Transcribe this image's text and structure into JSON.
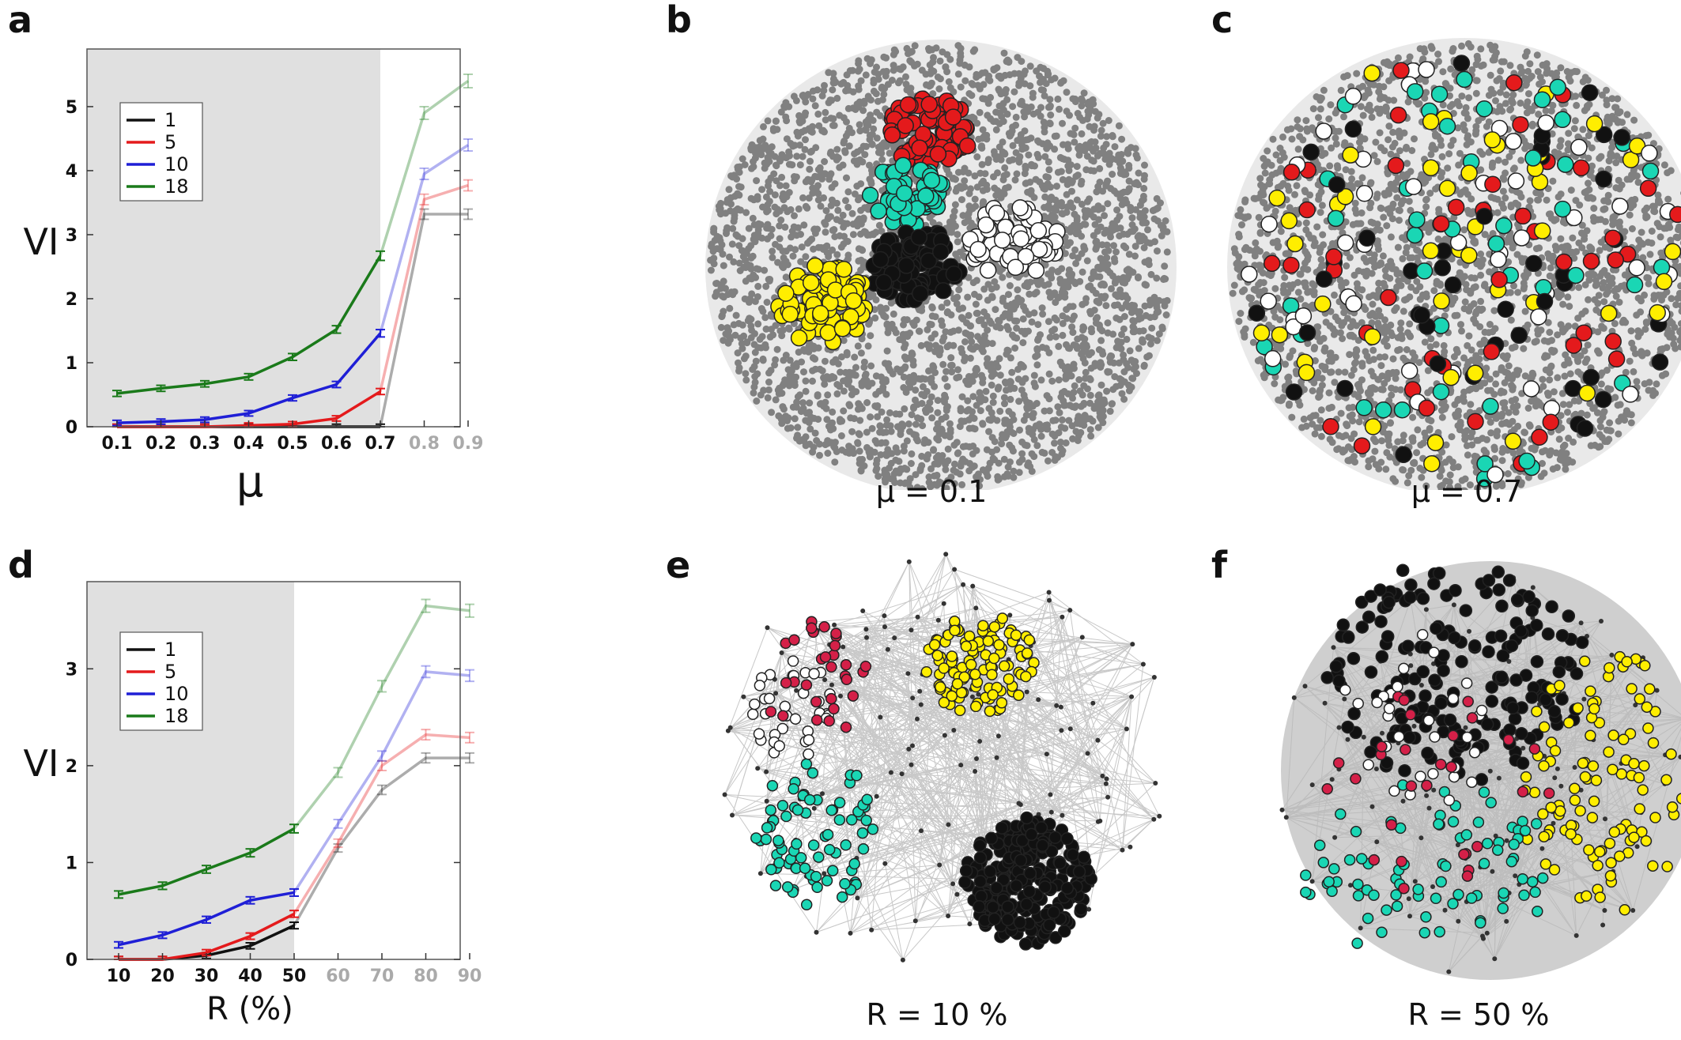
{
  "panels": {
    "a": "a",
    "b": "b",
    "c": "c",
    "d": "d",
    "e": "e",
    "f": "f"
  },
  "captions": {
    "b": "μ = 0.1",
    "c": "μ = 0.7",
    "e": "R = 10 %",
    "f": "R = 50 %"
  },
  "colors": {
    "black": "#111111",
    "red": "#e41a1c",
    "blue": "#1f1fd6",
    "green": "#1a7a1a",
    "shade": "#e0e0e0",
    "node_gray": "#808080",
    "yellow": "#ffee00",
    "cyan": "#1ad6b4",
    "white": "#ffffff",
    "crimson": "#d42048",
    "edge": "#c8c8c8"
  },
  "chart_data": [
    {
      "id": "a",
      "type": "line",
      "x": [
        0.1,
        0.2,
        0.3,
        0.4,
        0.5,
        0.6,
        0.7,
        0.8,
        0.9
      ],
      "x_tick_labels": [
        "0.1",
        "0.2",
        "0.3",
        "0.4",
        "0.5",
        "0.6",
        "0.7",
        "0.8",
        "0.9"
      ],
      "shaded_until": 0.7,
      "xlabel": "μ",
      "ylabel": "VI",
      "ylim": [
        0,
        5.9
      ],
      "yticks": [
        0,
        1,
        2,
        3,
        4,
        5
      ],
      "legend": "upper-left",
      "series": [
        {
          "name": "1",
          "color": "#111111",
          "values": [
            0,
            0,
            0,
            0,
            0,
            0,
            0,
            3.32,
            3.32
          ]
        },
        {
          "name": "5",
          "color": "#e41a1c",
          "values": [
            0,
            0,
            0,
            0.02,
            0.04,
            0.13,
            0.55,
            3.55,
            3.77
          ]
        },
        {
          "name": "10",
          "color": "#1f1fd6",
          "values": [
            0.06,
            0.08,
            0.11,
            0.21,
            0.45,
            0.66,
            1.46,
            3.95,
            4.4
          ]
        },
        {
          "name": "18",
          "color": "#1a7a1a",
          "values": [
            0.52,
            0.6,
            0.67,
            0.78,
            1.09,
            1.52,
            2.67,
            4.9,
            5.4
          ]
        }
      ]
    },
    {
      "id": "d",
      "type": "line",
      "x": [
        10,
        20,
        30,
        40,
        50,
        60,
        70,
        80,
        90
      ],
      "x_tick_labels": [
        "10",
        "20",
        "30",
        "40",
        "50",
        "60",
        "70",
        "80",
        "90"
      ],
      "shaded_until": 50,
      "xlabel": "R (%)",
      "ylabel": "VI",
      "ylim": [
        0,
        3.9
      ],
      "yticks": [
        0,
        1,
        2,
        3
      ],
      "legend": "upper-left",
      "series": [
        {
          "name": "1",
          "color": "#111111",
          "values": [
            0,
            0,
            0.04,
            0.14,
            0.35,
            1.15,
            1.75,
            2.08,
            2.08
          ]
        },
        {
          "name": "5",
          "color": "#e41a1c",
          "values": [
            0,
            0,
            0.07,
            0.24,
            0.47,
            1.2,
            2.0,
            2.32,
            2.29
          ]
        },
        {
          "name": "10",
          "color": "#1f1fd6",
          "values": [
            0.15,
            0.25,
            0.41,
            0.61,
            0.69,
            1.4,
            2.1,
            2.97,
            2.93
          ]
        },
        {
          "name": "18",
          "color": "#1a7a1a",
          "values": [
            0.67,
            0.76,
            0.93,
            1.1,
            1.35,
            1.93,
            2.82,
            3.65,
            3.6
          ]
        }
      ]
    }
  ]
}
